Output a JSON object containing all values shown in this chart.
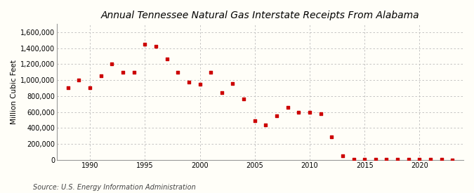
{
  "title": "Annual Tennessee Natural Gas Interstate Receipts From Alabama",
  "ylabel": "Million Cubic Feet",
  "source": "Source: U.S. Energy Information Administration",
  "background_color": "#fffef8",
  "plot_bg_color": "#fffef8",
  "marker_color": "#cc0000",
  "grid_color": "#bbbbbb",
  "years": [
    1988,
    1989,
    1990,
    1991,
    1992,
    1993,
    1994,
    1995,
    1996,
    1997,
    1998,
    1999,
    2000,
    2001,
    2002,
    2003,
    2004,
    2005,
    2006,
    2007,
    2008,
    2009,
    2010,
    2011,
    2012,
    2013,
    2014,
    2015,
    2016,
    2017,
    2018,
    2019,
    2020,
    2021,
    2022,
    2023
  ],
  "values": [
    900000,
    1000000,
    900000,
    1050000,
    1200000,
    1100000,
    1100000,
    1450000,
    1420000,
    1260000,
    1100000,
    970000,
    950000,
    1100000,
    840000,
    960000,
    760000,
    490000,
    440000,
    550000,
    660000,
    600000,
    600000,
    580000,
    290000,
    55000,
    5000,
    10000,
    8000,
    10000,
    8000,
    5000,
    12000,
    8000,
    5000,
    3000
  ],
  "ylim": [
    0,
    1700000
  ],
  "yticks": [
    0,
    200000,
    400000,
    600000,
    800000,
    1000000,
    1200000,
    1400000,
    1600000
  ],
  "xlim": [
    1987,
    2024
  ],
  "xticks": [
    1990,
    1995,
    2000,
    2005,
    2010,
    2015,
    2020
  ],
  "title_fontsize": 10,
  "tick_fontsize": 7,
  "ylabel_fontsize": 7.5,
  "source_fontsize": 7,
  "marker_size": 10
}
